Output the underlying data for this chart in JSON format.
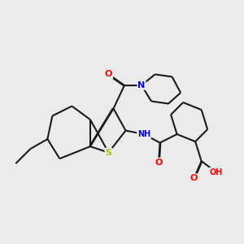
{
  "background_color": "#ebebeb",
  "bond_color": "#1a1a1a",
  "atom_colors": {
    "O": "#ff0000",
    "N": "#0000ff",
    "S": "#b8b800",
    "C": "#1a1a1a"
  },
  "figsize": [
    3.0,
    3.0
  ],
  "dpi": 100
}
